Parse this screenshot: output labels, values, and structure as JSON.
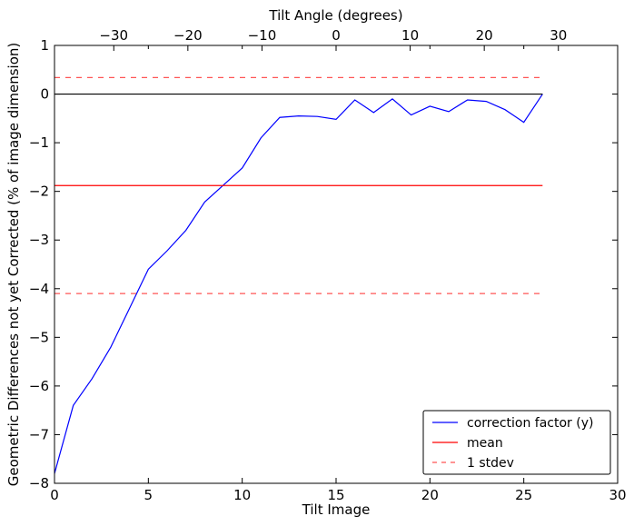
{
  "chart_data": {
    "type": "line",
    "title": "",
    "xlabel": "Tilt Image",
    "ylabel": "Geometric Differences not yet Corrected (% of image dimension)",
    "top_xlabel": "Tilt Angle (degrees)",
    "xlim": [
      0,
      30
    ],
    "ylim": [
      -8,
      1
    ],
    "xticks": [
      0,
      5,
      10,
      15,
      20,
      25,
      30
    ],
    "xtick_labels": [
      "0",
      "5",
      "10",
      "15",
      "20",
      "25",
      "30"
    ],
    "yticks": [
      1,
      0,
      -1,
      -2,
      -3,
      -4,
      -5,
      -6,
      -7,
      -8
    ],
    "ytick_labels": [
      "1",
      "0",
      "−1",
      "−2",
      "−3",
      "−4",
      "−5",
      "−6",
      "−7",
      "−8"
    ],
    "top_xticks": [
      -30,
      -20,
      -10,
      0,
      10,
      20,
      30
    ],
    "top_xtick_labels": [
      "−30",
      "−20",
      "−10",
      "0",
      "10",
      "20",
      "30"
    ],
    "top_axis_map": {
      "angle": [
        -38,
        38
      ],
      "image": [
        0,
        30
      ]
    },
    "grid": false,
    "legend_position": "lower-right",
    "series": [
      {
        "name": "correction factor (y)",
        "color": "#0000ff",
        "style": "solid",
        "x": [
          0,
          1,
          2,
          3,
          4,
          5,
          6,
          7,
          8,
          9,
          10,
          11,
          12,
          13,
          14,
          15,
          16,
          17,
          18,
          19,
          20,
          21,
          22,
          23,
          24,
          25,
          26
        ],
        "y": [
          -7.8,
          -6.4,
          -5.85,
          -5.2,
          -4.4,
          -3.6,
          -3.22,
          -2.8,
          -2.22,
          -1.87,
          -1.52,
          -0.9,
          -0.48,
          -0.45,
          -0.46,
          -0.52,
          -0.12,
          -0.38,
          -0.1,
          -0.43,
          -0.25,
          -0.36,
          -0.12,
          -0.15,
          -0.32,
          -0.58,
          0.0
        ]
      },
      {
        "name": "mean",
        "color": "#ff0000",
        "style": "solid",
        "x": [
          0,
          26
        ],
        "y": [
          -1.88,
          -1.88
        ]
      },
      {
        "name": "1 stdev",
        "color": "#ff5555",
        "style": "dashed",
        "x": [
          0,
          26
        ],
        "y": [
          0.34,
          0.34
        ]
      },
      {
        "name": "",
        "color": "#ff5555",
        "style": "dashed",
        "x": [
          0,
          26
        ],
        "y": [
          -4.1,
          -4.1
        ]
      },
      {
        "name": "",
        "color": "#000000",
        "style": "solid",
        "x": [
          0,
          26
        ],
        "y": [
          0,
          0
        ]
      }
    ],
    "legend": [
      {
        "label": "correction factor (y)",
        "color": "#0000ff",
        "style": "solid"
      },
      {
        "label": "mean",
        "color": "#ff0000",
        "style": "solid"
      },
      {
        "label": "1 stdev",
        "color": "#ff5555",
        "style": "dashed"
      }
    ]
  }
}
